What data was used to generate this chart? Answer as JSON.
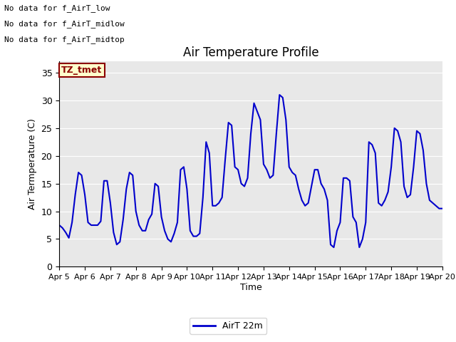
{
  "title": "Air Temperature Profile",
  "ylabel": "Air Termperature (C)",
  "xlabel": "Time",
  "legend_label": "AirT 22m",
  "no_data_texts": [
    "No data for f_AirT_low",
    "No data for f_AirT_midlow",
    "No data for f_AirT_midtop"
  ],
  "tz_label": "TZ_tmet",
  "ylim": [
    0,
    37
  ],
  "yticks": [
    0,
    5,
    10,
    15,
    20,
    25,
    30,
    35
  ],
  "line_color": "#0000cc",
  "background_color": "#e8e8e8",
  "x_tick_labels": [
    "Apr 5",
    "Apr 6",
    "Apr 7",
    "Apr 8",
    "Apr 9",
    "Apr 10",
    "Apr 11",
    "Apr 12",
    "Apr 13",
    "Apr 14",
    "Apr 15",
    "Apr 16",
    "Apr 17",
    "Apr 18",
    "Apr 19",
    "Apr 20"
  ],
  "time_hours": [
    0,
    3,
    6,
    9,
    12,
    15,
    18,
    21,
    24,
    27,
    30,
    33,
    36,
    39,
    42,
    45,
    48,
    51,
    54,
    57,
    60,
    63,
    66,
    69,
    72,
    75,
    78,
    81,
    84,
    87,
    90,
    93,
    96,
    99,
    102,
    105,
    108,
    111,
    114,
    117,
    120,
    123,
    126,
    129,
    132,
    135,
    138,
    141,
    144,
    147,
    150,
    153,
    156,
    159,
    162,
    165,
    168,
    171,
    174,
    177,
    180,
    183,
    186,
    189,
    192,
    195,
    198,
    201,
    204,
    207,
    210,
    213,
    216,
    219,
    222,
    225,
    228,
    231,
    234,
    237,
    240,
    243,
    246,
    249,
    252,
    255,
    258,
    261,
    264,
    267,
    270,
    273,
    276,
    279,
    282,
    285,
    288,
    291,
    294,
    297,
    300,
    303,
    306,
    309,
    312,
    315,
    318,
    321,
    324,
    327,
    330,
    333,
    336,
    339,
    342,
    345,
    348,
    351,
    354,
    357,
    360
  ],
  "temperature": [
    7.5,
    7.0,
    6.2,
    5.2,
    8.0,
    13.0,
    17.0,
    16.5,
    13.0,
    8.0,
    7.5,
    7.5,
    7.5,
    8.2,
    15.5,
    15.5,
    11.5,
    6.2,
    4.0,
    4.5,
    8.5,
    14.0,
    17.0,
    16.5,
    10.0,
    7.5,
    6.5,
    6.5,
    8.5,
    9.5,
    15.0,
    14.5,
    9.0,
    6.5,
    5.0,
    4.5,
    6.0,
    8.0,
    17.5,
    18.0,
    14.0,
    6.5,
    5.5,
    5.5,
    6.0,
    12.5,
    22.5,
    20.5,
    11.0,
    11.0,
    11.5,
    12.5,
    19.5,
    26.0,
    25.5,
    18.0,
    17.5,
    15.0,
    14.5,
    16.0,
    24.0,
    29.5,
    28.0,
    26.5,
    18.5,
    17.5,
    16.0,
    16.5,
    24.0,
    31.0,
    30.5,
    26.5,
    18.0,
    17.0,
    16.5,
    14.0,
    12.0,
    11.0,
    11.5,
    14.5,
    17.5,
    17.5,
    15.0,
    14.0,
    12.0,
    4.0,
    3.5,
    6.5,
    8.0,
    16.0,
    16.0,
    15.5,
    9.0,
    8.0,
    3.5,
    5.0,
    8.0,
    22.5,
    22.0,
    20.5,
    11.5,
    11.0,
    12.0,
    13.5,
    18.0,
    25.0,
    24.5,
    22.5,
    14.5,
    12.5,
    13.0,
    18.0,
    24.5,
    24.0,
    21.0,
    15.0,
    12.0,
    11.5,
    11.0,
    10.5,
    10.5
  ]
}
